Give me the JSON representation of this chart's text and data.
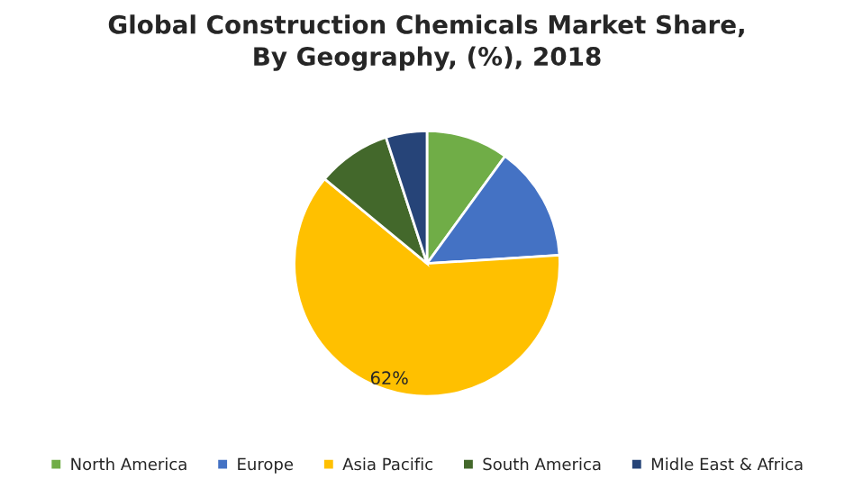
{
  "chart_data": {
    "type": "pie",
    "title": "Global Construction Chemicals Market Share,\nBy Geography, (%), 2018",
    "categories": [
      "North America",
      "Europe",
      "Asia Pacific",
      "South America",
      "Midle East & Africa"
    ],
    "values": [
      10,
      14,
      62,
      9,
      5
    ],
    "colors": [
      "#70ad47",
      "#4472c4",
      "#ffc000",
      "#43682b",
      "#264478"
    ],
    "value_labels": [
      null,
      null,
      "62%",
      null,
      null
    ],
    "legend": "bottom"
  }
}
